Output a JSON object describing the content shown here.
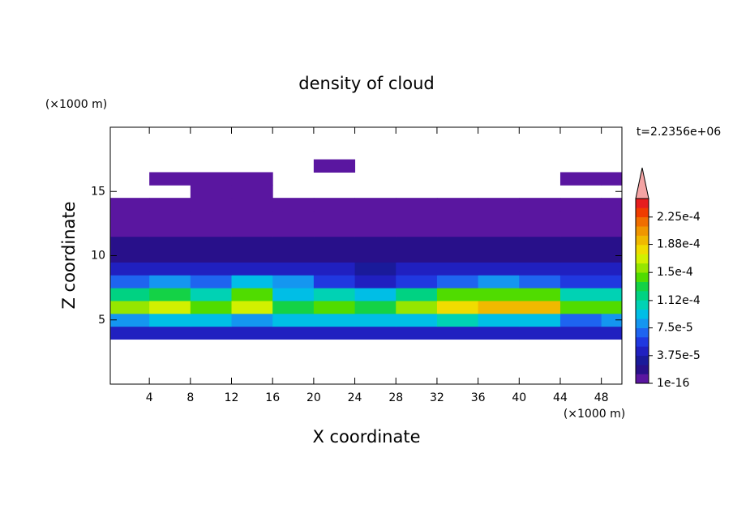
{
  "chart_data": {
    "type": "contour",
    "title": "density of cloud",
    "x_label": "X coordinate",
    "y_label": "Z coordinate",
    "x_unit": "(×1000 m)",
    "y_unit": "(×1000 m)",
    "annotation": "t=2.2356e+06",
    "xlim": [
      0.2,
      50
    ],
    "ylim": [
      0,
      20
    ],
    "xticks": [
      4,
      8,
      12,
      16,
      20,
      24,
      28,
      32,
      36,
      40,
      44,
      48
    ],
    "yticks": [
      5,
      10,
      15
    ],
    "x": [
      2,
      6,
      10,
      14,
      18,
      22,
      26,
      30,
      34,
      38,
      42,
      46,
      50
    ],
    "y": [
      4,
      5,
      6,
      7,
      8,
      9,
      10,
      11,
      12,
      13,
      14,
      15,
      16,
      17
    ],
    "z": [
      [
        4.5e-05,
        5e-05,
        4.5e-05,
        5e-05,
        4e-05,
        5e-05,
        4.5e-05,
        5e-05,
        4.5e-05,
        5e-05,
        4e-05,
        4.5e-05,
        5e-05
      ],
      [
        8e-05,
        9e-05,
        0.0001,
        8e-05,
        9e-05,
        0.0001,
        9e-05,
        0.0001,
        0.00011,
        0.0001,
        9e-05,
        7e-05,
        8e-05
      ],
      [
        0.00016,
        0.00017,
        0.00015,
        0.00017,
        0.00013,
        0.00014,
        0.00013,
        0.00016,
        0.00018,
        0.0002,
        0.00019,
        0.00014,
        0.00015
      ],
      [
        0.00012,
        0.00013,
        0.00011,
        0.00014,
        0.0001,
        0.00011,
        0.0001,
        0.00012,
        0.00014,
        0.00015,
        0.00014,
        0.00011,
        0.00011
      ],
      [
        7e-05,
        8e-05,
        7e-05,
        9e-05,
        8e-05,
        6e-05,
        5e-05,
        6e-05,
        7e-05,
        8e-05,
        7e-05,
        6e-05,
        6e-05
      ],
      [
        4e-05,
        5e-05,
        4e-05,
        5e-05,
        4e-05,
        4e-05,
        3e-05,
        4e-05,
        5e-05,
        5e-05,
        4e-05,
        4e-05,
        5e-05
      ],
      [
        2.5e-05,
        2.5e-05,
        2e-05,
        2.5e-05,
        2e-05,
        2.5e-05,
        2e-05,
        2e-05,
        2.5e-05,
        2.5e-05,
        2e-05,
        2.5e-05,
        2.5e-05
      ],
      [
        1.5e-05,
        1.5e-05,
        1.5e-05,
        1.5e-05,
        1.5e-05,
        1.5e-05,
        1.5e-05,
        1.5e-05,
        1.5e-05,
        1.5e-05,
        1.5e-05,
        1.5e-05,
        1.5e-05
      ],
      [
        6e-06,
        6e-06,
        6e-06,
        6e-06,
        6e-06,
        6e-06,
        6e-06,
        6e-06,
        6e-06,
        6e-06,
        6e-06,
        6e-06,
        6e-06
      ],
      [
        3e-06,
        3e-06,
        3e-06,
        3e-06,
        3e-06,
        3e-06,
        3e-06,
        3e-06,
        3e-06,
        3e-06,
        3e-06,
        3e-06,
        3e-06
      ],
      [
        1e-06,
        1e-06,
        1e-06,
        1e-06,
        1e-06,
        1e-06,
        1e-06,
        1e-06,
        1e-06,
        1e-06,
        1e-06,
        1e-06,
        1e-06
      ],
      [
        null,
        null,
        1e-06,
        1e-06,
        null,
        null,
        null,
        null,
        null,
        null,
        null,
        null,
        null
      ],
      [
        null,
        1e-06,
        1e-06,
        1e-06,
        null,
        null,
        null,
        null,
        null,
        null,
        null,
        1e-06,
        1e-06
      ],
      [
        null,
        null,
        null,
        null,
        null,
        1e-06,
        null,
        null,
        null,
        null,
        null,
        null,
        null
      ]
    ],
    "colorbar": {
      "lim": [
        1e-16,
        0.00025
      ],
      "ticks": [
        1e-16,
        {
          "value": 3.75e-05,
          "label": "3.75e-5"
        },
        {
          "value": 7.5e-05,
          "label": "7.5e-5"
        },
        {
          "value": 0.000112,
          "label": "1.12e-4"
        },
        {
          "value": 0.00015,
          "label": "1.5e-4"
        },
        {
          "value": 0.000188,
          "label": "1.88e-4"
        },
        {
          "value": 0.000225,
          "label": "2.25e-4"
        }
      ],
      "colors": [
        "#5a16a0",
        "#28108a",
        "#1a1a9a",
        "#2020c0",
        "#2038e0",
        "#1e64f0",
        "#1496f0",
        "#00bee6",
        "#00d2b4",
        "#00d282",
        "#14d246",
        "#50dc00",
        "#96e600",
        "#d2f000",
        "#f0dc00",
        "#f0b900",
        "#f09600",
        "#f06e00",
        "#f03c00",
        "#e61e1e"
      ],
      "extend_color": "#f4a4a4"
    }
  }
}
